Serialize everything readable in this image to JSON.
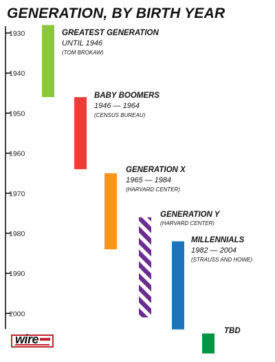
{
  "chart_data": {
    "type": "bar",
    "orientation": "vertical-timeline",
    "title": "GENERATION, BY BIRTH YEAR",
    "axis": {
      "ticks": [
        1930,
        1940,
        1950,
        1960,
        1970,
        1980,
        1990,
        2000
      ],
      "range": [
        1926,
        2010
      ]
    },
    "series": [
      {
        "name": "GREATEST GENERATION",
        "range_label": "UNTIL 1946",
        "source": "(TOM BROKAW)",
        "start": 1928,
        "end": 1946,
        "color": "#8cc63f",
        "pattern": "solid"
      },
      {
        "name": "BABY BOOMERS",
        "range_label": "1946 — 1964",
        "source": "(CENSUS BUREAU)",
        "start": 1946,
        "end": 1964,
        "color": "#ee3d36",
        "pattern": "solid"
      },
      {
        "name": "GENERATION X",
        "range_label": "1965 — 1984",
        "source": "(HARVARD CENTER)",
        "start": 1965,
        "end": 1984,
        "color": "#f7941d",
        "pattern": "solid"
      },
      {
        "name": "GENERATION Y",
        "range_label": "",
        "source": "(HARVARD CENTER)",
        "start": 1976,
        "end": 2001,
        "color": "#6a2d91",
        "pattern": "striped"
      },
      {
        "name": "MILLENNIALS",
        "range_label": "1982 — 2004",
        "source": "(STRAUSS AND HOWE)",
        "start": 1982,
        "end": 2004,
        "color": "#1c75bc",
        "pattern": "solid"
      },
      {
        "name": "TBD",
        "range_label": "",
        "source": "",
        "start": 2005,
        "end": 2010,
        "color": "#009444",
        "pattern": "solid"
      }
    ]
  },
  "logo": {
    "text": "wire"
  }
}
